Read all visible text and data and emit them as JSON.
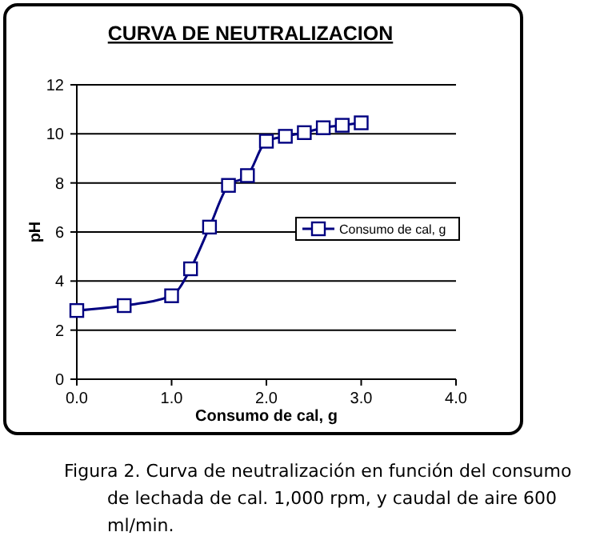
{
  "chart_data": {
    "type": "line",
    "title": "CURVA DE NEUTRALIZACION",
    "xlabel": "Consumo de cal, g",
    "ylabel": "pH",
    "x": [
      0,
      0.5,
      1.0,
      1.2,
      1.4,
      1.6,
      1.8,
      2.0,
      2.2,
      2.4,
      2.6,
      2.8,
      3.0
    ],
    "series": [
      {
        "name": "Consumo de cal, g",
        "color": "#000080",
        "values": [
          2.8,
          3.0,
          3.4,
          4.5,
          6.2,
          7.9,
          8.3,
          9.7,
          9.9,
          10.05,
          10.25,
          10.35,
          10.45
        ]
      }
    ],
    "xlim": [
      0,
      4
    ],
    "xticks": [
      {
        "value": 0,
        "label": "0.0"
      },
      {
        "value": 1,
        "label": "1.0"
      },
      {
        "value": 2,
        "label": "2.0"
      },
      {
        "value": 3,
        "label": "3.0"
      },
      {
        "value": 4,
        "label": "4.0"
      }
    ],
    "ylim": [
      0,
      12
    ],
    "yticks": [
      0,
      2,
      4,
      6,
      8,
      10,
      12
    ],
    "grid": "y",
    "legend": "right",
    "marker": "square",
    "line_style": "solid",
    "annotations": [
      "Figura 2. Curva de neutralización en función del consumo de lechada de cal. 1,000 rpm, y caudal de aire 600 ml/min."
    ]
  }
}
